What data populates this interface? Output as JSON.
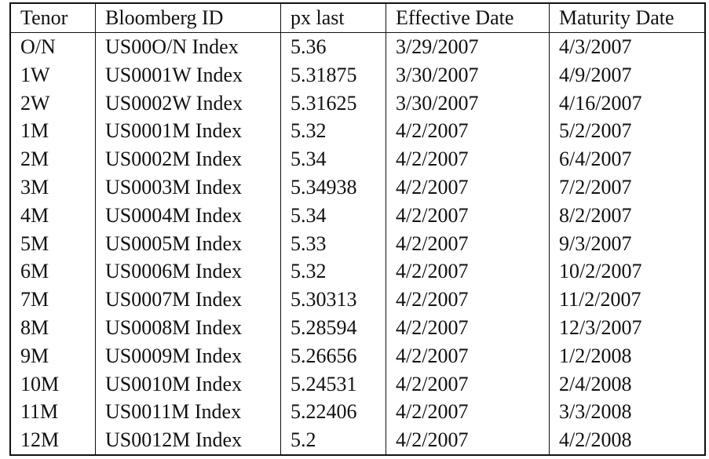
{
  "table": {
    "headers": [
      "Tenor",
      "Bloomberg ID",
      "px last",
      "Effective Date",
      "Maturity Date"
    ],
    "rows": [
      [
        "O/N",
        "US00O/N Index",
        "5.36",
        "3/29/2007",
        "4/3/2007"
      ],
      [
        "1W",
        "US0001W Index",
        "5.31875",
        "3/30/2007",
        "4/9/2007"
      ],
      [
        "2W",
        "US0002W Index",
        "5.31625",
        "3/30/2007",
        "4/16/2007"
      ],
      [
        "1M",
        "US0001M Index",
        "5.32",
        "4/2/2007",
        "5/2/2007"
      ],
      [
        "2M",
        "US0002M Index",
        "5.34",
        "4/2/2007",
        "6/4/2007"
      ],
      [
        "3M",
        "US0003M Index",
        "5.34938",
        "4/2/2007",
        "7/2/2007"
      ],
      [
        "4M",
        "US0004M Index",
        "5.34",
        "4/2/2007",
        "8/2/2007"
      ],
      [
        "5M",
        "US0005M Index",
        "5.33",
        "4/2/2007",
        "9/3/2007"
      ],
      [
        "6M",
        "US0006M Index",
        "5.32",
        "4/2/2007",
        "10/2/2007"
      ],
      [
        "7M",
        "US0007M Index",
        "5.30313",
        "4/2/2007",
        "11/2/2007"
      ],
      [
        "8M",
        "US0008M Index",
        "5.28594",
        "4/2/2007",
        "12/3/2007"
      ],
      [
        "9M",
        "US0009M Index",
        "5.26656",
        "4/2/2007",
        "1/2/2008"
      ],
      [
        "10M",
        "US0010M Index",
        "5.24531",
        "4/2/2007",
        "2/4/2008"
      ],
      [
        "11M",
        "US0011M Index",
        "5.22406",
        "4/2/2007",
        "3/3/2008"
      ],
      [
        "12M",
        "US0012M Index",
        "5.2",
        "4/2/2007",
        "4/2/2008"
      ]
    ]
  }
}
